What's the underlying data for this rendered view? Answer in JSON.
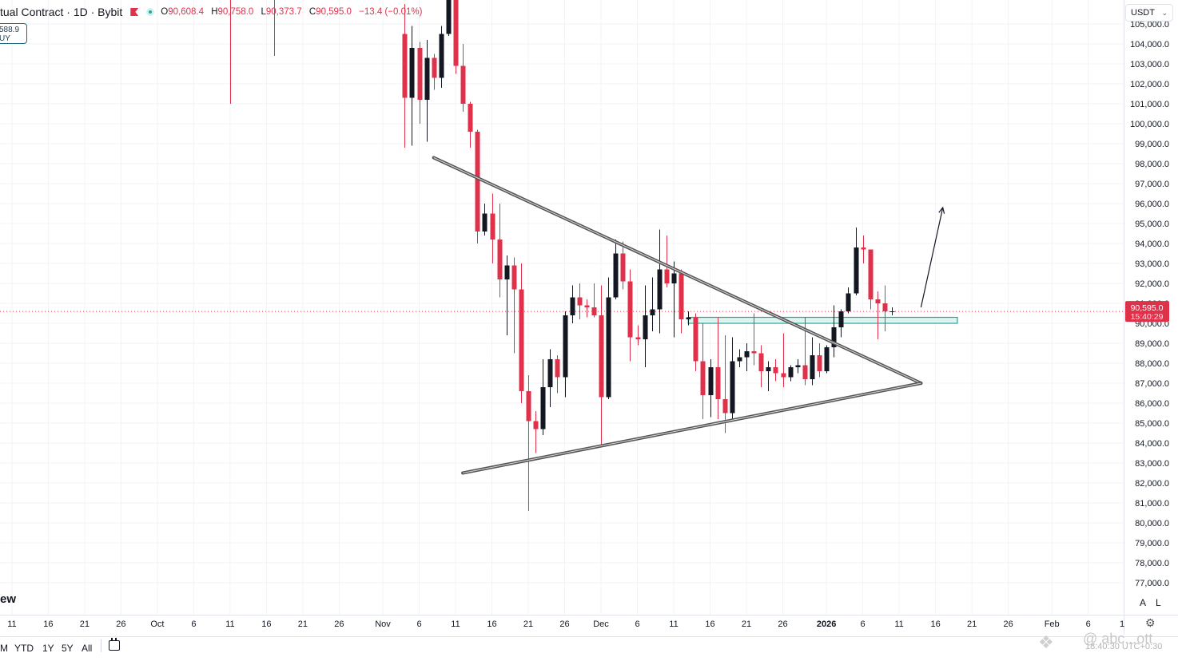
{
  "header": {
    "title": "tual Contract · 1D · Bybit",
    "ohlc": [
      {
        "label": "O",
        "value": "90,608.4"
      },
      {
        "label": "H",
        "value": "90,758.0"
      },
      {
        "label": "L",
        "value": "90,373.7"
      },
      {
        "label": "C",
        "value": "90,595.0"
      }
    ],
    "change": "−13.4 (−0.01%)",
    "buy_value": "588.9",
    "buy_label": "UY"
  },
  "currency_selector": "USDT",
  "price_label": {
    "price": "90,595.0",
    "countdown": "15:40:29"
  },
  "range_buttons": [
    "M",
    "YTD",
    "1Y",
    "5Y",
    "All"
  ],
  "axis_controls": [
    "A",
    "L"
  ],
  "logo_text": "ew",
  "watermark": {
    "text": "@ abc...ott",
    "sub": "18:40:30 UTC+0:30"
  },
  "colors": {
    "up": "#131722",
    "down": "#e0314b",
    "zone_fill": "#dff3ef",
    "zone_border": "#26a69a",
    "price_tag": "#e0314b"
  },
  "chart_data": {
    "type": "candlestick",
    "y_axis": {
      "min": 76500,
      "max": 105500,
      "step": 1000,
      "tick_labels": [
        "105,000.0",
        "104,000.0",
        "103,000.0",
        "102,000.0",
        "101,000.0",
        "100,000.0",
        "99,000.0",
        "98,000.0",
        "97,000.0",
        "96,000.0",
        "95,000.0",
        "94,000.0",
        "93,000.0",
        "92,000.0",
        "91,000.0",
        "90,000.0",
        "89,000.0",
        "88,000.0",
        "87,000.0",
        "86,000.0",
        "85,000.0",
        "84,000.0",
        "83,000.0",
        "82,000.0",
        "81,000.0",
        "80,000.0",
        "79,000.0",
        "78,000.0",
        "77,000.0"
      ]
    },
    "x_axis": {
      "start": "2025-09-09",
      "end": "2026-02-06",
      "ticks": [
        {
          "date": "2025-09-11",
          "label": "11"
        },
        {
          "date": "2025-09-16",
          "label": "16"
        },
        {
          "date": "2025-09-21",
          "label": "21"
        },
        {
          "date": "2025-09-26",
          "label": "26"
        },
        {
          "date": "2025-10-01",
          "label": "Oct"
        },
        {
          "date": "2025-10-06",
          "label": "6"
        },
        {
          "date": "2025-10-11",
          "label": "11"
        },
        {
          "date": "2025-10-16",
          "label": "16"
        },
        {
          "date": "2025-10-21",
          "label": "21"
        },
        {
          "date": "2025-10-26",
          "label": "26"
        },
        {
          "date": "2025-11-01",
          "label": "Nov"
        },
        {
          "date": "2025-11-06",
          "label": "6"
        },
        {
          "date": "2025-11-11",
          "label": "11"
        },
        {
          "date": "2025-11-16",
          "label": "16"
        },
        {
          "date": "2025-11-21",
          "label": "21"
        },
        {
          "date": "2025-11-26",
          "label": "26"
        },
        {
          "date": "2025-12-01",
          "label": "Dec"
        },
        {
          "date": "2025-12-06",
          "label": "6"
        },
        {
          "date": "2025-12-11",
          "label": "11"
        },
        {
          "date": "2025-12-16",
          "label": "16"
        },
        {
          "date": "2025-12-21",
          "label": "21"
        },
        {
          "date": "2025-12-26",
          "label": "26"
        },
        {
          "date": "2026-01-01",
          "label": "2026",
          "bold": true
        },
        {
          "date": "2026-01-06",
          "label": "6"
        },
        {
          "date": "2026-01-11",
          "label": "11"
        },
        {
          "date": "2026-01-16",
          "label": "16"
        },
        {
          "date": "2026-01-21",
          "label": "21"
        },
        {
          "date": "2026-01-26",
          "label": "26"
        },
        {
          "date": "2026-02-01",
          "label": "Feb"
        },
        {
          "date": "2026-02-06",
          "label": "6"
        }
      ],
      "extra_labels": [
        "1"
      ]
    },
    "wicks_only": [
      {
        "date": "2025-10-11",
        "high": 106500,
        "low": 101000
      },
      {
        "date": "2025-10-17",
        "high": 106500,
        "low": 103400
      }
    ],
    "candles": [
      {
        "date": "2025-11-04",
        "open": 104500,
        "high": 106000,
        "low": 98800,
        "close": 101300
      },
      {
        "date": "2025-11-05",
        "open": 101300,
        "high": 104900,
        "low": 98900,
        "close": 103800
      },
      {
        "date": "2025-11-06",
        "open": 103800,
        "high": 104100,
        "low": 100000,
        "close": 101200
      },
      {
        "date": "2025-11-07",
        "open": 101200,
        "high": 104200,
        "low": 99100,
        "close": 103300
      },
      {
        "date": "2025-11-08",
        "open": 103300,
        "high": 103500,
        "low": 101700,
        "close": 102300
      },
      {
        "date": "2025-11-09",
        "open": 102300,
        "high": 104900,
        "low": 101800,
        "close": 104500
      },
      {
        "date": "2025-11-10",
        "open": 104500,
        "high": 106500,
        "low": 104400,
        "close": 106200
      },
      {
        "date": "2025-11-11",
        "open": 106200,
        "high": 106400,
        "low": 102500,
        "close": 102900
      },
      {
        "date": "2025-11-12",
        "open": 102900,
        "high": 104000,
        "low": 100600,
        "close": 101000
      },
      {
        "date": "2025-11-13",
        "open": 101000,
        "high": 101100,
        "low": 98800,
        "close": 99600
      },
      {
        "date": "2025-11-14",
        "open": 99600,
        "high": 99700,
        "low": 94000,
        "close": 94600
      },
      {
        "date": "2025-11-15",
        "open": 94600,
        "high": 96000,
        "low": 94400,
        "close": 95500
      },
      {
        "date": "2025-11-16",
        "open": 95500,
        "high": 96500,
        "low": 93000,
        "close": 94200
      },
      {
        "date": "2025-11-17",
        "open": 94200,
        "high": 96000,
        "low": 91300,
        "close": 92200
      },
      {
        "date": "2025-11-18",
        "open": 92200,
        "high": 93400,
        "low": 89400,
        "close": 92900
      },
      {
        "date": "2025-11-19",
        "open": 92900,
        "high": 93300,
        "low": 88500,
        "close": 91700
      },
      {
        "date": "2025-11-20",
        "open": 91700,
        "high": 93000,
        "low": 86000,
        "close": 86600
      },
      {
        "date": "2025-11-21",
        "open": 86600,
        "high": 87400,
        "low": 80600,
        "close": 85100
      },
      {
        "date": "2025-11-22",
        "open": 85100,
        "high": 85600,
        "low": 83500,
        "close": 84700
      },
      {
        "date": "2025-11-23",
        "open": 84700,
        "high": 88200,
        "low": 84400,
        "close": 86800
      },
      {
        "date": "2025-11-24",
        "open": 86800,
        "high": 88700,
        "low": 85800,
        "close": 88200
      },
      {
        "date": "2025-11-25",
        "open": 88200,
        "high": 88400,
        "low": 86500,
        "close": 87300
      },
      {
        "date": "2025-11-26",
        "open": 87300,
        "high": 90600,
        "low": 86300,
        "close": 90400
      },
      {
        "date": "2025-11-27",
        "open": 90400,
        "high": 91900,
        "low": 90000,
        "close": 91300
      },
      {
        "date": "2025-11-28",
        "open": 91300,
        "high": 92000,
        "low": 90200,
        "close": 90900
      },
      {
        "date": "2025-11-29",
        "open": 90900,
        "high": 91200,
        "low": 90300,
        "close": 90800
      },
      {
        "date": "2025-11-30",
        "open": 90800,
        "high": 92000,
        "low": 90300,
        "close": 90400
      },
      {
        "date": "2025-12-01",
        "open": 90400,
        "high": 91900,
        "low": 83800,
        "close": 86300
      },
      {
        "date": "2025-12-02",
        "open": 86300,
        "high": 92300,
        "low": 86200,
        "close": 91300
      },
      {
        "date": "2025-12-03",
        "open": 91300,
        "high": 94200,
        "low": 91200,
        "close": 93500
      },
      {
        "date": "2025-12-04",
        "open": 93500,
        "high": 94100,
        "low": 91700,
        "close": 92100
      },
      {
        "date": "2025-12-05",
        "open": 92100,
        "high": 92700,
        "low": 88100,
        "close": 89300
      },
      {
        "date": "2025-12-06",
        "open": 89300,
        "high": 89900,
        "low": 88900,
        "close": 89200
      },
      {
        "date": "2025-12-07",
        "open": 89200,
        "high": 91900,
        "low": 87800,
        "close": 90400
      },
      {
        "date": "2025-12-08",
        "open": 90400,
        "high": 92300,
        "low": 89600,
        "close": 90700
      },
      {
        "date": "2025-12-09",
        "open": 90700,
        "high": 94700,
        "low": 89500,
        "close": 92700
      },
      {
        "date": "2025-12-10",
        "open": 92700,
        "high": 94400,
        "low": 91800,
        "close": 92000
      },
      {
        "date": "2025-12-11",
        "open": 92000,
        "high": 93100,
        "low": 89300,
        "close": 92500
      },
      {
        "date": "2025-12-12",
        "open": 92500,
        "high": 92700,
        "low": 89500,
        "close": 90200
      },
      {
        "date": "2025-12-13",
        "open": 90200,
        "high": 90600,
        "low": 89900,
        "close": 90300
      },
      {
        "date": "2025-12-14",
        "open": 90300,
        "high": 90500,
        "low": 87600,
        "close": 88100
      },
      {
        "date": "2025-12-15",
        "open": 88100,
        "high": 90000,
        "low": 85200,
        "close": 86400
      },
      {
        "date": "2025-12-16",
        "open": 86400,
        "high": 88200,
        "low": 85300,
        "close": 87800
      },
      {
        "date": "2025-12-17",
        "open": 87800,
        "high": 90300,
        "low": 85200,
        "close": 86200
      },
      {
        "date": "2025-12-18",
        "open": 86200,
        "high": 89400,
        "low": 84500,
        "close": 85500
      },
      {
        "date": "2025-12-19",
        "open": 85500,
        "high": 89300,
        "low": 85200,
        "close": 88100
      },
      {
        "date": "2025-12-20",
        "open": 88100,
        "high": 88700,
        "low": 87800,
        "close": 88300
      },
      {
        "date": "2025-12-21",
        "open": 88300,
        "high": 89000,
        "low": 87600,
        "close": 88600
      },
      {
        "date": "2025-12-22",
        "open": 88600,
        "high": 90500,
        "low": 87900,
        "close": 88500
      },
      {
        "date": "2025-12-23",
        "open": 88500,
        "high": 88900,
        "low": 86800,
        "close": 87600
      },
      {
        "date": "2025-12-24",
        "open": 87600,
        "high": 88100,
        "low": 86600,
        "close": 87800
      },
      {
        "date": "2025-12-25",
        "open": 87800,
        "high": 88200,
        "low": 87100,
        "close": 87500
      },
      {
        "date": "2025-12-26",
        "open": 87500,
        "high": 89500,
        "low": 86800,
        "close": 87300
      },
      {
        "date": "2025-12-27",
        "open": 87300,
        "high": 87900,
        "low": 87100,
        "close": 87800
      },
      {
        "date": "2025-12-28",
        "open": 87800,
        "high": 88200,
        "low": 87500,
        "close": 87900
      },
      {
        "date": "2025-12-29",
        "open": 87900,
        "high": 90300,
        "low": 86900,
        "close": 87200
      },
      {
        "date": "2025-12-30",
        "open": 87200,
        "high": 89300,
        "low": 86900,
        "close": 88400
      },
      {
        "date": "2025-12-31",
        "open": 88400,
        "high": 89000,
        "low": 87300,
        "close": 87600
      },
      {
        "date": "2026-01-01",
        "open": 87600,
        "high": 88900,
        "low": 87500,
        "close": 88800
      },
      {
        "date": "2026-01-02",
        "open": 88800,
        "high": 90900,
        "low": 88300,
        "close": 89800
      },
      {
        "date": "2026-01-03",
        "open": 89800,
        "high": 90700,
        "low": 89300,
        "close": 90600
      },
      {
        "date": "2026-01-04",
        "open": 90600,
        "high": 91800,
        "low": 90500,
        "close": 91500
      },
      {
        "date": "2026-01-05",
        "open": 91500,
        "high": 94800,
        "low": 91400,
        "close": 93800
      },
      {
        "date": "2026-01-06",
        "open": 93800,
        "high": 94400,
        "low": 93000,
        "close": 93700
      },
      {
        "date": "2026-01-07",
        "open": 93700,
        "high": 93700,
        "low": 90700,
        "close": 91200
      },
      {
        "date": "2026-01-08",
        "open": 91200,
        "high": 91600,
        "low": 89200,
        "close": 91000
      },
      {
        "date": "2026-01-09",
        "open": 91000,
        "high": 91900,
        "low": 89600,
        "close": 90600
      },
      {
        "date": "2026-01-10",
        "open": 90600,
        "high": 90800,
        "low": 90400,
        "close": 90600
      }
    ],
    "drawings": {
      "upper_trendline": {
        "from": {
          "date": "2025-11-08",
          "price": 98300
        },
        "to": {
          "date": "2026-01-14",
          "price": 87000
        }
      },
      "lower_trendline": {
        "from": {
          "date": "2025-11-12",
          "price": 82500
        },
        "to": {
          "date": "2026-01-14",
          "price": 87000
        }
      },
      "zone": {
        "from_date": "2025-12-13",
        "to_date": "2026-01-19",
        "top": 90300,
        "bottom": 90000
      },
      "arrow": {
        "from": {
          "date": "2026-01-14",
          "price": 90800
        },
        "to": {
          "date": "2026-01-17",
          "price": 95800
        }
      },
      "last_price_line": 90595
    }
  }
}
